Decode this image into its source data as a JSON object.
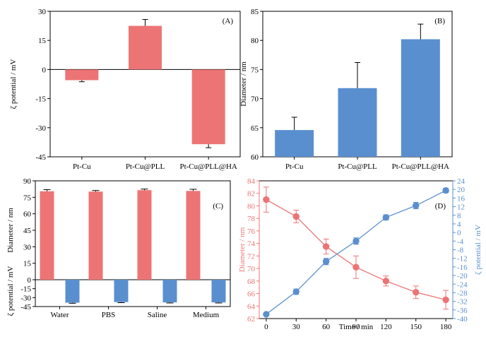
{
  "colors": {
    "red": "#ec7475",
    "blue": "#5a8fcf",
    "axis": "#000000"
  },
  "chart_data": [
    {
      "id": "A",
      "type": "bar",
      "label": "(A)",
      "categories": [
        "Pt-Cu",
        "Pt-Cu@PLL",
        "Pt-Cu@PLL@HA"
      ],
      "values": [
        -5.5,
        22.5,
        -38.5
      ],
      "errors": [
        0.8,
        3.3,
        1.8
      ],
      "ylabel": "ζ potential / mV",
      "ylim": [
        -45,
        30
      ],
      "yticks": [
        -45,
        -30,
        -15,
        0,
        15,
        30
      ],
      "color": "#ec7475"
    },
    {
      "id": "B",
      "type": "bar",
      "label": "(B)",
      "categories": [
        "Pt-Cu",
        "Pt-Cu@PLL",
        "Pt-Cu@PLL@HA"
      ],
      "values": [
        64.6,
        71.8,
        80.2
      ],
      "errors": [
        2.2,
        4.4,
        2.6
      ],
      "ylabel": "Diameter / nm",
      "ylim": [
        60,
        85
      ],
      "yticks": [
        60,
        65,
        70,
        75,
        80,
        85
      ],
      "color": "#5a8fcf"
    },
    {
      "id": "C",
      "type": "bar",
      "label": "(C)",
      "categories": [
        "Water",
        "PBS",
        "Saline",
        "Medium"
      ],
      "top": {
        "ylabel": "Diameter / nm",
        "ylim": [
          0,
          90
        ],
        "yticks": [
          0,
          15,
          30,
          45,
          60,
          75,
          90
        ],
        "values": [
          80.5,
          80.2,
          81.5,
          80.8
        ],
        "errors": [
          1.5,
          1.0,
          1.0,
          1.5
        ],
        "color": "#ec7475"
      },
      "bottom": {
        "ylabel": "ζ potential / mV",
        "ylim": [
          -45,
          0
        ],
        "yticks": [
          -45,
          -30,
          -15,
          0
        ],
        "values": [
          -38.5,
          -37.5,
          -38.0,
          -38.0
        ],
        "errors": [
          1.0,
          1.0,
          1.0,
          1.0
        ],
        "color": "#5a8fcf"
      }
    },
    {
      "id": "D",
      "type": "line",
      "label": "(D)",
      "xlabel": "Time / min",
      "x": [
        0,
        30,
        60,
        90,
        120,
        150,
        180
      ],
      "xticks": [
        0,
        30,
        60,
        90,
        120,
        150,
        180
      ],
      "xlim": [
        -7,
        187
      ],
      "left": {
        "ylabel": "Diameter / nm",
        "ylim": [
          62,
          84
        ],
        "yticks": [
          62,
          64,
          66,
          68,
          70,
          72,
          74,
          76,
          78,
          80,
          82,
          84
        ],
        "values": [
          81.0,
          78.3,
          73.5,
          70.2,
          68.0,
          66.2,
          65.0
        ],
        "errors": [
          2.0,
          1.0,
          1.2,
          1.8,
          0.8,
          1.0,
          1.5
        ],
        "color": "#ec7475"
      },
      "right": {
        "ylabel": "ζ potential / mV",
        "ylim": [
          -40,
          24
        ],
        "yticks": [
          -40,
          -36,
          -32,
          -28,
          -24,
          -20,
          -16,
          -12,
          -8,
          -4,
          0,
          4,
          8,
          12,
          16,
          20,
          24
        ],
        "values": [
          -38.0,
          -27.5,
          -13.5,
          -4.0,
          7.0,
          12.5,
          19.5
        ],
        "errors": [
          0.5,
          1.2,
          1.5,
          1.5,
          1.2,
          1.5,
          1.0
        ],
        "color": "#5a8fcf"
      }
    }
  ]
}
